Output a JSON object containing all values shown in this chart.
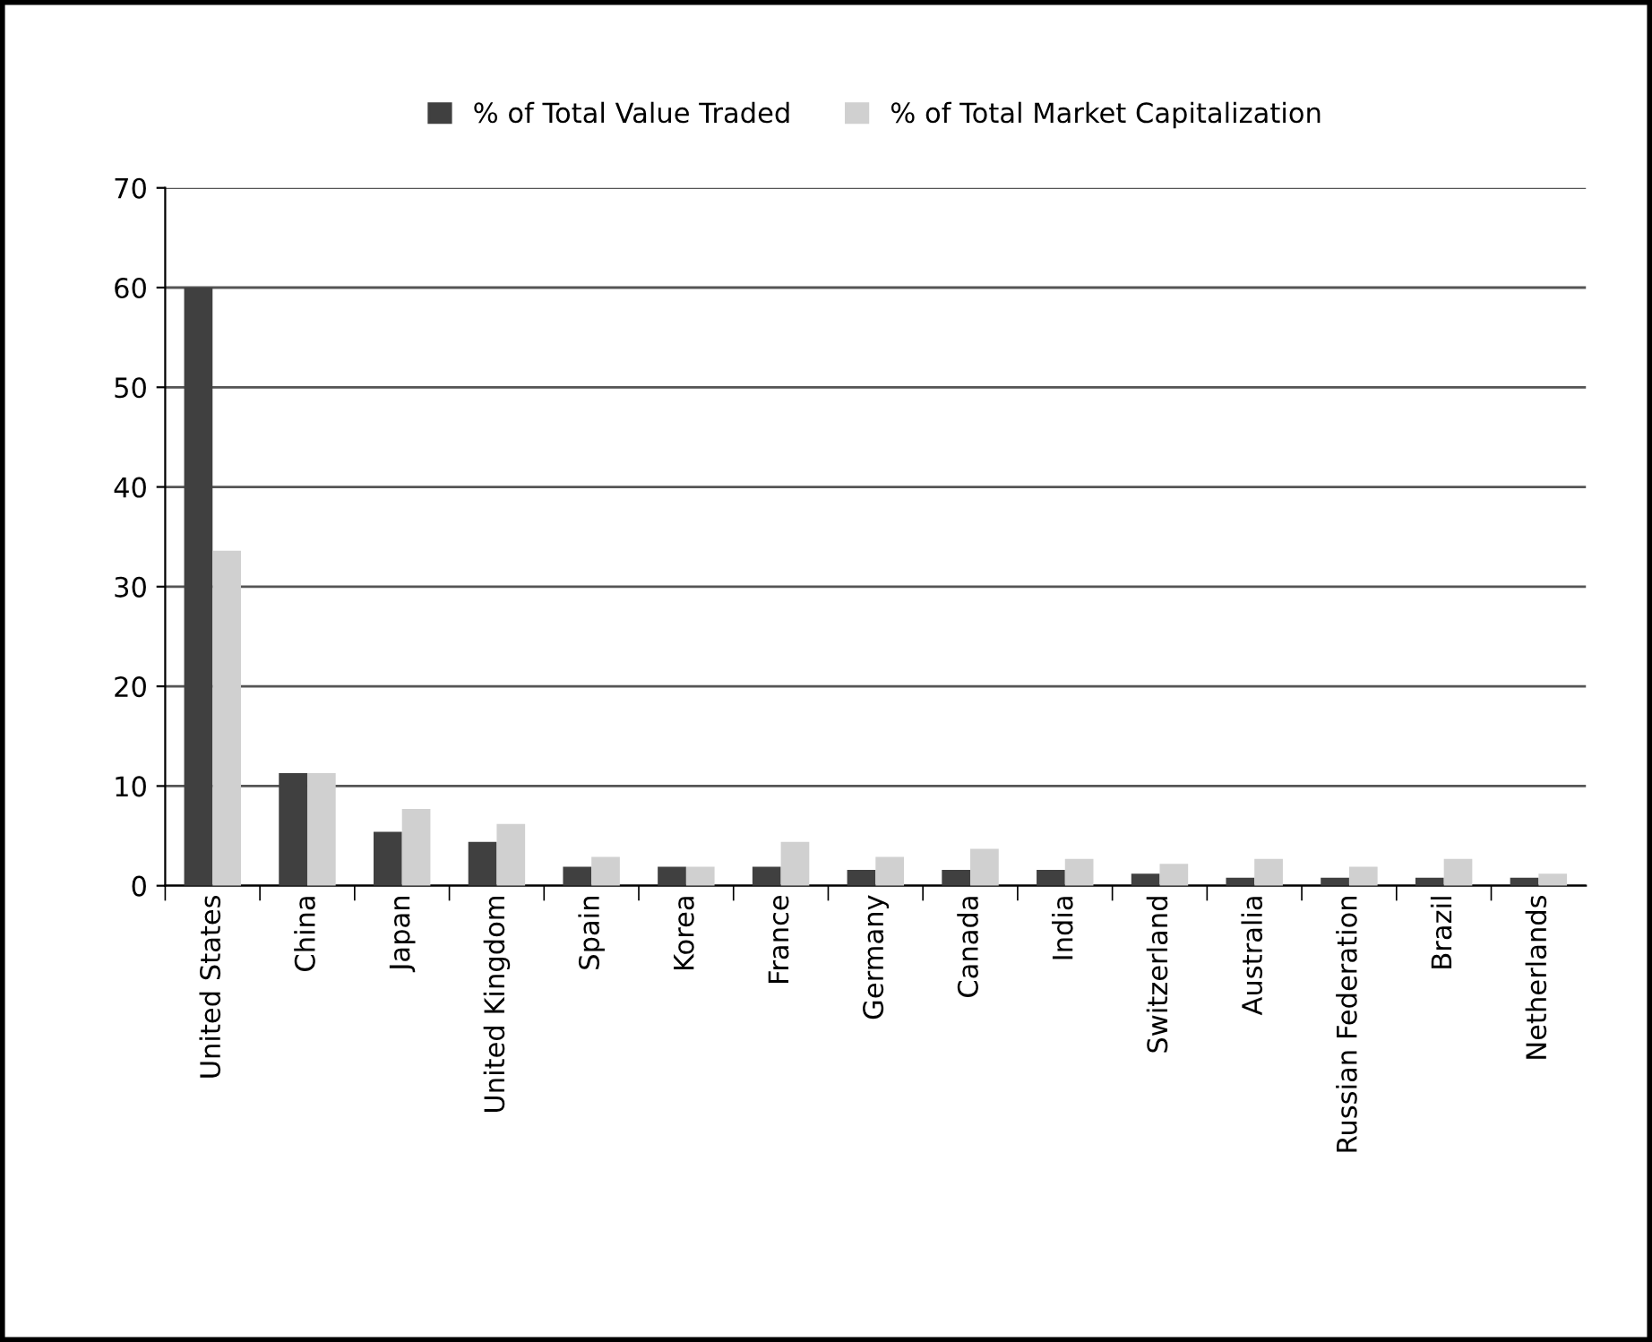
{
  "chart_data": {
    "type": "bar",
    "categories": [
      "United States",
      "China",
      "Japan",
      "United Kingdom",
      "Spain",
      "Korea",
      "France",
      "Germany",
      "Canada",
      "India",
      "Switzerland",
      "Australia",
      "Russian Federation",
      "Brazil",
      "Netherlands"
    ],
    "series": [
      {
        "name": "% of Total Value Traded",
        "color": "#404040",
        "values": [
          60,
          11.3,
          5.4,
          4.4,
          1.9,
          1.9,
          1.9,
          1.6,
          1.6,
          1.6,
          1.2,
          0.8,
          0.8,
          0.8,
          0.8
        ]
      },
      {
        "name": "% of Total Market Capitalization",
        "color": "#d0d0d0",
        "values": [
          33.6,
          11.3,
          7.7,
          6.2,
          2.9,
          1.9,
          4.4,
          2.9,
          3.7,
          2.7,
          2.2,
          2.7,
          1.9,
          2.7,
          1.2
        ]
      }
    ],
    "ylim": [
      0,
      70
    ],
    "yticks": [
      0,
      10,
      20,
      30,
      40,
      50,
      60,
      70
    ],
    "grid": "y",
    "legend": "top"
  }
}
